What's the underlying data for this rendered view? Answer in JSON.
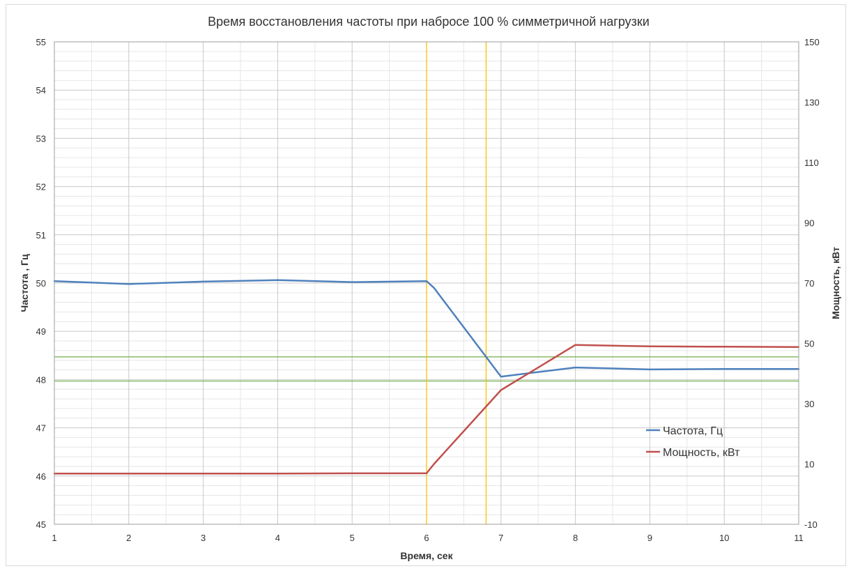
{
  "chart_data": {
    "type": "line",
    "title": "Время восстановления частоты при набросе 100 % симметричной нагрузки",
    "xlabel": "Время, сек",
    "ylabel": "Частота , Гц",
    "y2label": "Мощность, кВт",
    "xlim": [
      1,
      11
    ],
    "ylim": [
      45,
      55
    ],
    "y2lim": [
      -10,
      150
    ],
    "x_ticks": [
      "1",
      "2",
      "3",
      "4",
      "5",
      "6",
      "7",
      "8",
      "9",
      "10",
      "11"
    ],
    "y_ticks": [
      "45",
      "46",
      "47",
      "48",
      "49",
      "50",
      "51",
      "52",
      "53",
      "54",
      "55"
    ],
    "y2_ticks": [
      "-10",
      "10",
      "30",
      "50",
      "70",
      "90",
      "110",
      "130",
      "150"
    ],
    "grid": true,
    "legend_position": "bottom-right",
    "series": [
      {
        "name": "Частота, Гц",
        "axis": "left",
        "color": "#4f81bd",
        "x": [
          1,
          2,
          3,
          4,
          5,
          6,
          6.1,
          7,
          8,
          9,
          10,
          11
        ],
        "y": [
          50.04,
          49.98,
          50.03,
          50.06,
          50.02,
          50.04,
          49.9,
          48.06,
          48.25,
          48.21,
          48.22,
          48.22
        ]
      },
      {
        "name": "Мощность, кВт",
        "axis": "right",
        "color": "#c0504d",
        "x": [
          1,
          2,
          3,
          4,
          5,
          6,
          6.1,
          7,
          8,
          9,
          10,
          11
        ],
        "y": [
          6.8,
          6.8,
          6.8,
          6.8,
          6.9,
          6.9,
          10,
          34.5,
          49.5,
          49.0,
          48.9,
          48.8
        ]
      }
    ],
    "reference_lines": {
      "horizontal_frequency": [
        48.47,
        47.97
      ],
      "horizontal_color": "#70ad47",
      "vertical_time": [
        6,
        6.8
      ],
      "vertical_color": "#ffc000"
    }
  }
}
